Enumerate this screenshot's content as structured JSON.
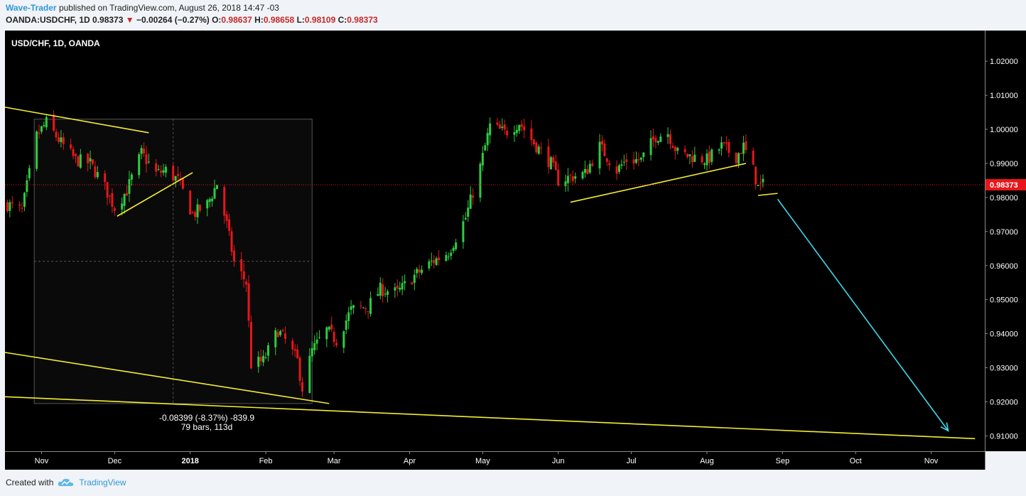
{
  "header": {
    "author": "Wave-Trader",
    "published": "published on TradingView.com, August 26, 2018 14:47 -03",
    "symbol": "OANDA:USDCHF, 1D",
    "last": "0.98373",
    "change_arrow": "▼",
    "change": "−0.00264 (−0.27%)",
    "o_label": "O:",
    "o": "0.98637",
    "h_label": "H:",
    "h": "0.98658",
    "l_label": "L:",
    "l": "0.98109",
    "c_label": "C:",
    "c": "0.98373"
  },
  "chart_title": "USD/CHF, 1D, OANDA",
  "measure": {
    "line1": "-0.08399 (-8.37%) -839.9",
    "line2": "79 bars, 113d"
  },
  "footer": {
    "created_with": "Created with",
    "brand": "TradingView",
    "logo_icon": "tradingview-cloud-icon"
  },
  "colors": {
    "up": "#2ecc40",
    "down": "#e8161a",
    "trendline": "#f4ec33",
    "projection": "#3fd6e8",
    "background": "#000000"
  },
  "chart_data": {
    "type": "candlestick",
    "y_ticks": [
      "1.02000",
      "1.01000",
      "1.00000",
      "0.99000",
      "0.98000",
      "0.97000",
      "0.96000",
      "0.95000",
      "0.94000",
      "0.93000",
      "0.92000",
      "0.91000"
    ],
    "ylim": [
      0.9055,
      1.029
    ],
    "current_price": "0.98373",
    "x_ticks": [
      "Nov",
      "Dec",
      "2018",
      "Feb",
      "Mar",
      "Apr",
      "May",
      "Jun",
      "Jul",
      "Aug",
      "Sep",
      "Oct",
      "Nov"
    ],
    "grid": false,
    "close_path": [
      [
        "2017-10-18",
        0.978
      ],
      [
        "2017-10-24",
        0.976
      ],
      [
        "2017-10-30",
        0.998
      ],
      [
        "2017-11-03",
        1.002
      ],
      [
        "2017-11-09",
        0.996
      ],
      [
        "2017-11-15",
        0.991
      ],
      [
        "2017-11-21",
        0.99
      ],
      [
        "2017-11-27",
        0.983
      ],
      [
        "2017-12-01",
        0.977
      ],
      [
        "2017-12-06",
        0.982
      ],
      [
        "2017-12-12",
        0.993
      ],
      [
        "2017-12-18",
        0.987
      ],
      [
        "2017-12-22",
        0.988
      ],
      [
        "2017-12-27",
        0.985
      ],
      [
        "2018-01-02",
        0.975
      ],
      [
        "2018-01-08",
        0.978
      ],
      [
        "2018-01-12",
        0.984
      ],
      [
        "2018-01-16",
        0.972
      ],
      [
        "2018-01-19",
        0.961
      ],
      [
        "2018-01-24",
        0.955
      ],
      [
        "2018-01-26",
        0.931
      ],
      [
        "2018-01-31",
        0.932
      ],
      [
        "2018-02-06",
        0.941
      ],
      [
        "2018-02-09",
        0.938
      ],
      [
        "2018-02-14",
        0.932
      ],
      [
        "2018-02-16",
        0.924
      ],
      [
        "2018-02-20",
        0.935
      ],
      [
        "2018-02-26",
        0.941
      ],
      [
        "2018-03-02",
        0.938
      ],
      [
        "2018-03-08",
        0.947
      ],
      [
        "2018-03-15",
        0.948
      ],
      [
        "2018-03-20",
        0.953
      ],
      [
        "2018-03-27",
        0.952
      ],
      [
        "2018-04-03",
        0.957
      ],
      [
        "2018-04-10",
        0.961
      ],
      [
        "2018-04-17",
        0.964
      ],
      [
        "2018-04-24",
        0.974
      ],
      [
        "2018-04-30",
        0.989
      ],
      [
        "2018-05-04",
        1.001
      ],
      [
        "2018-05-10",
        0.999
      ],
      [
        "2018-05-16",
        1.002
      ],
      [
        "2018-05-22",
        0.996
      ],
      [
        "2018-05-29",
        0.99
      ],
      [
        "2018-06-01",
        0.985
      ],
      [
        "2018-06-06",
        0.986
      ],
      [
        "2018-06-12",
        0.987
      ],
      [
        "2018-06-18",
        0.995
      ],
      [
        "2018-06-25",
        0.988
      ],
      [
        "2018-06-29",
        0.991
      ],
      [
        "2018-07-05",
        0.991
      ],
      [
        "2018-07-11",
        0.998
      ],
      [
        "2018-07-16",
        0.999
      ],
      [
        "2018-07-20",
        0.993
      ],
      [
        "2018-07-26",
        0.992
      ],
      [
        "2018-08-01",
        0.991
      ],
      [
        "2018-08-07",
        0.995
      ],
      [
        "2018-08-13",
        0.992
      ],
      [
        "2018-08-16",
        0.995
      ],
      [
        "2018-08-20",
        0.988
      ],
      [
        "2018-08-22",
        0.983
      ],
      [
        "2018-08-24",
        0.9837
      ]
    ],
    "trendlines": [
      {
        "from": [
          "2017-10-17",
          1.0065
        ],
        "to": [
          "2017-12-15",
          0.999
        ]
      },
      {
        "from": [
          "2017-12-02",
          0.9745
        ],
        "to": [
          "2018-01-02",
          0.9873
        ]
      },
      {
        "from": [
          "2017-10-17",
          0.9345
        ],
        "to": [
          "2018-02-27",
          0.9195
        ]
      },
      {
        "from": [
          "2017-10-17",
          0.9215
        ],
        "to": [
          "2018-11-19",
          0.9092
        ]
      },
      {
        "from": [
          "2018-06-06",
          0.9786
        ],
        "to": [
          "2018-08-17",
          0.99
        ]
      },
      {
        "from": [
          "2018-08-22",
          0.9806
        ],
        "to": [
          "2018-08-30",
          0.9812
        ]
      }
    ],
    "projection_arrow": {
      "from": [
        "2018-08-30",
        0.9795
      ],
      "to": [
        "2018-11-08",
        0.9115
      ]
    },
    "measurement_box": {
      "from": [
        "2017-10-29",
        1.003
      ],
      "to": [
        "2018-02-20",
        0.9195
      ]
    }
  }
}
